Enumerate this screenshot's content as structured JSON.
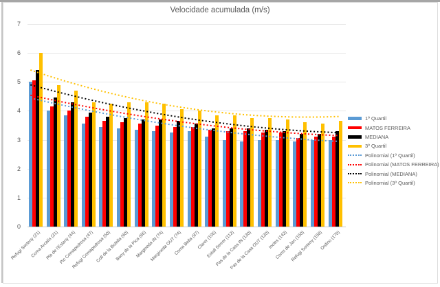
{
  "chart_data": {
    "type": "bar",
    "title": "Velocidade acumulada (m/s)",
    "ylim": [
      0,
      7
    ],
    "yticks": [
      0,
      1,
      2,
      3,
      4,
      5,
      6,
      7
    ],
    "grid": true,
    "legend_position": "right",
    "categories": [
      "Refugi Sorteny (21)",
      "Coma Arcalís (31)",
      "Pla de l'Estany (44)",
      "Pic Comapedrosa (47)",
      "Refugi Comapedrosa (50)",
      "Coll de la Botella (60)",
      "Bony de la Pica (66)",
      "Margineda IN (74)",
      "Margineda OUT (74)",
      "Coma Bella (87)",
      "Claror (105)",
      "Estall Serrer (112)",
      "Pas de la Casa IN (130)",
      "Pas de la Casa OUT (130)",
      "Incles (143)",
      "Coms de Jan (150)",
      "Refugi Sorteny (158)",
      "Ordino (170)"
    ],
    "series": [
      {
        "name": "1º Quartil",
        "color": "#5B9BD5",
        "values": [
          5.0,
          4.0,
          3.85,
          3.55,
          3.45,
          3.4,
          3.35,
          3.3,
          3.25,
          3.3,
          3.1,
          3.0,
          2.95,
          3.0,
          3.0,
          2.95,
          3.0,
          3.0
        ]
      },
      {
        "name": "MATOS FERREIRA",
        "color": "#FF0000",
        "values": [
          5.05,
          4.15,
          4.0,
          3.8,
          3.65,
          3.6,
          3.55,
          3.5,
          3.45,
          3.45,
          3.35,
          3.3,
          3.3,
          3.25,
          3.25,
          3.05,
          3.1,
          3.1
        ]
      },
      {
        "name": "MEDIANA",
        "color": "#000000",
        "values": [
          5.4,
          4.45,
          4.3,
          3.95,
          3.8,
          3.75,
          3.7,
          3.7,
          3.65,
          3.55,
          3.4,
          3.4,
          3.4,
          3.35,
          3.3,
          3.2,
          3.2,
          3.3
        ]
      },
      {
        "name": "3º Quartil",
        "color": "#FFC000",
        "values": [
          6.0,
          4.9,
          4.7,
          4.3,
          4.25,
          4.3,
          4.3,
          4.25,
          4.05,
          4.0,
          3.85,
          3.85,
          3.75,
          3.75,
          3.7,
          3.6,
          3.55,
          3.65
        ]
      }
    ],
    "trendlines": [
      {
        "name": "Polinomial (1º Quartil)",
        "color": "#5B9BD5",
        "start": 4.4,
        "mid": 3.45,
        "end": 2.95
      },
      {
        "name": "Polinomial (MATOS FERREIRA)",
        "color": "#FF0000",
        "start": 4.5,
        "mid": 3.6,
        "end": 3.15
      },
      {
        "name": "Polinomial (MEDIANA)",
        "color": "#000000",
        "start": 4.85,
        "mid": 3.75,
        "end": 3.25
      },
      {
        "name": "Polinomial (3º Quartil)",
        "color": "#FFC000",
        "start": 5.35,
        "mid": 4.1,
        "end": 3.8
      }
    ]
  },
  "legend": {
    "entries": [
      {
        "label": "1º Quartil",
        "color": "#5B9BD5",
        "style": "bar"
      },
      {
        "label": "MATOS FERREIRA",
        "color": "#FF0000",
        "style": "bar"
      },
      {
        "label": "MEDIANA",
        "color": "#000000",
        "style": "bar"
      },
      {
        "label": "3º Quartil",
        "color": "#FFC000",
        "style": "bar"
      },
      {
        "label": "Polinomial (1º Quartil)",
        "color": "#5B9BD5",
        "style": "dots"
      },
      {
        "label": "Polinomial (MATOS FERREIRA)",
        "color": "#FF0000",
        "style": "dots"
      },
      {
        "label": "Polinomial (MEDIANA)",
        "color": "#000000",
        "style": "dots"
      },
      {
        "label": "Polinomial (3º Quartil)",
        "color": "#FFC000",
        "style": "dots"
      }
    ]
  }
}
